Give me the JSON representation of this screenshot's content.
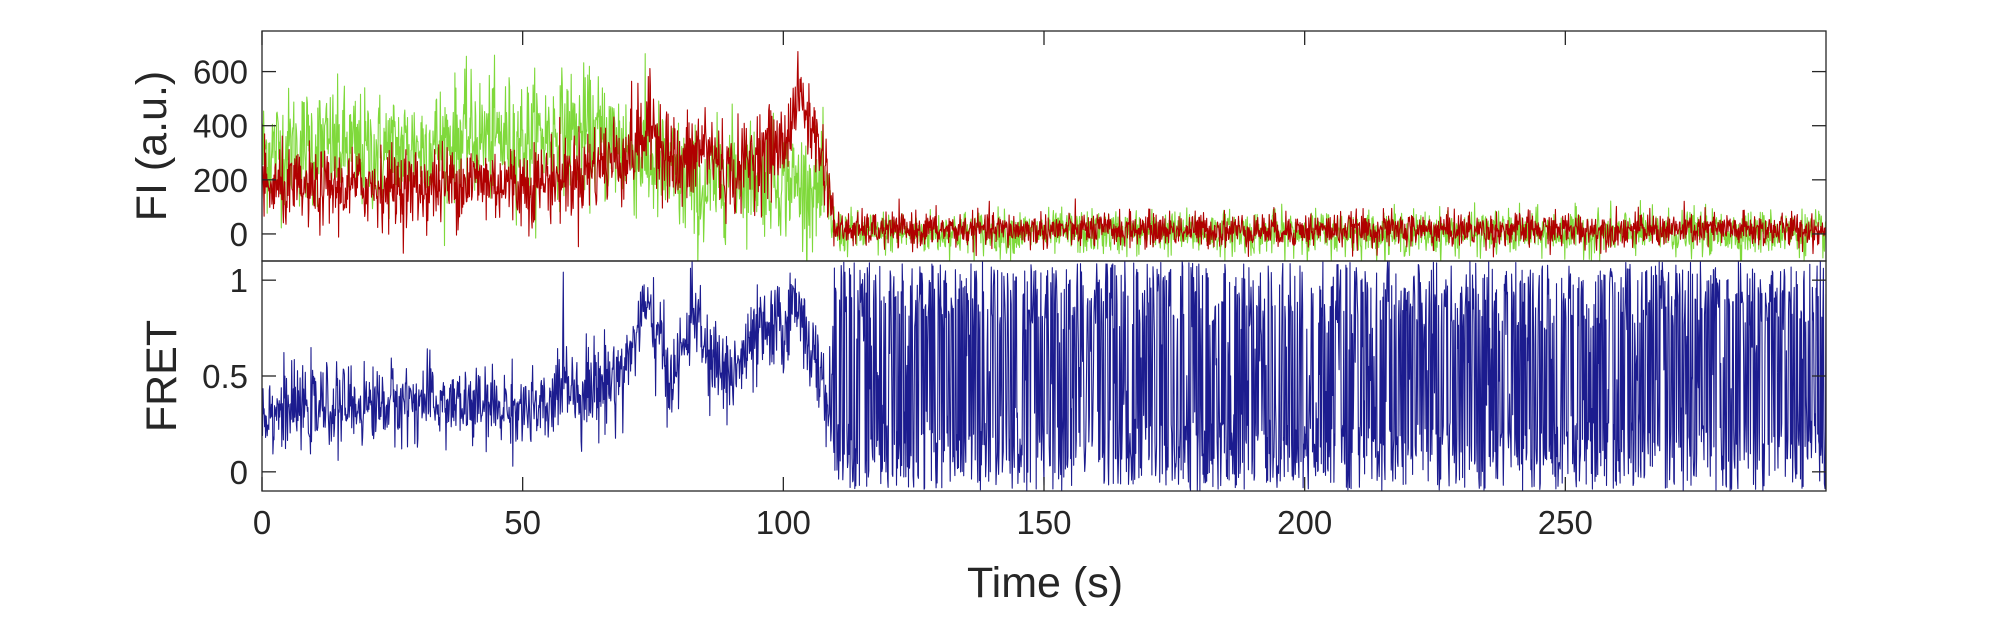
{
  "chart_data": [
    {
      "type": "line",
      "panel": "top",
      "title": "",
      "xlabel": "",
      "ylabel": "FI (a.u.)",
      "xlim": [
        0,
        300
      ],
      "ylim": [
        -100,
        750
      ],
      "yticks": [
        0,
        200,
        400,
        600
      ],
      "ytick_labels": [
        "0",
        "200",
        "400",
        "600"
      ],
      "grid": false,
      "legend": null,
      "series": [
        {
          "color": "#7fd93b",
          "profile_x": [
            0,
            10,
            20,
            30,
            40,
            50,
            60,
            70,
            80,
            85,
            90,
            100,
            108,
            110,
            120,
            150,
            200,
            250,
            300
          ],
          "profile_y": [
            300,
            330,
            300,
            320,
            360,
            350,
            380,
            330,
            200,
            150,
            240,
            200,
            150,
            5,
            5,
            5,
            5,
            5,
            5
          ],
          "noise": [
            110,
            110,
            110,
            110,
            110,
            110,
            110,
            120,
            110,
            110,
            100,
            100,
            100,
            40,
            40,
            40,
            40,
            40,
            40
          ]
        },
        {
          "color": "#b00000",
          "profile_x": [
            0,
            10,
            20,
            30,
            40,
            50,
            60,
            70,
            75,
            80,
            85,
            90,
            95,
            100,
            103,
            106,
            108,
            110,
            120,
            150,
            200,
            250,
            300
          ],
          "profile_y": [
            170,
            160,
            180,
            170,
            200,
            180,
            220,
            300,
            400,
            230,
            330,
            210,
            300,
            320,
            520,
            360,
            260,
            15,
            15,
            15,
            15,
            15,
            15
          ],
          "noise": [
            70,
            70,
            70,
            75,
            75,
            75,
            80,
            90,
            90,
            90,
            90,
            80,
            80,
            80,
            60,
            80,
            80,
            32,
            32,
            32,
            32,
            32,
            32
          ]
        }
      ]
    },
    {
      "type": "line",
      "panel": "bottom",
      "title": "",
      "xlabel": "Time (s)",
      "ylabel": "FRET",
      "xlim": [
        0,
        300
      ],
      "ylim": [
        -0.1,
        1.1
      ],
      "xticks": [
        0,
        50,
        100,
        150,
        200,
        250
      ],
      "xtick_labels": [
        "0",
        "50",
        "100",
        "150",
        "200",
        "250"
      ],
      "yticks": [
        0,
        0.5,
        1
      ],
      "ytick_labels": [
        "0",
        "0.5",
        "1"
      ],
      "grid": false,
      "legend": null,
      "series": [
        {
          "color": "#1c1c8f",
          "profile_x": [
            0,
            10,
            20,
            30,
            40,
            50,
            55,
            58,
            60,
            65,
            70,
            73,
            75,
            78,
            80,
            83,
            85,
            90,
            95,
            100,
            103,
            106,
            109
          ],
          "profile_y": [
            0.32,
            0.33,
            0.35,
            0.37,
            0.34,
            0.33,
            0.3,
            0.55,
            0.42,
            0.45,
            0.55,
            0.85,
            0.78,
            0.5,
            0.55,
            0.88,
            0.6,
            0.5,
            0.7,
            0.75,
            0.9,
            0.55,
            0.35
          ],
          "noise": [
            0.1,
            0.1,
            0.1,
            0.1,
            0.1,
            0.1,
            0.1,
            0.12,
            0.12,
            0.12,
            0.12,
            0.1,
            0.12,
            0.12,
            0.12,
            0.1,
            0.12,
            0.12,
            0.12,
            0.12,
            0.1,
            0.12,
            0.12
          ],
          "saturated_from_x": 109.5,
          "saturated_range": [
            -0.1,
            1.1
          ]
        }
      ]
    }
  ]
}
